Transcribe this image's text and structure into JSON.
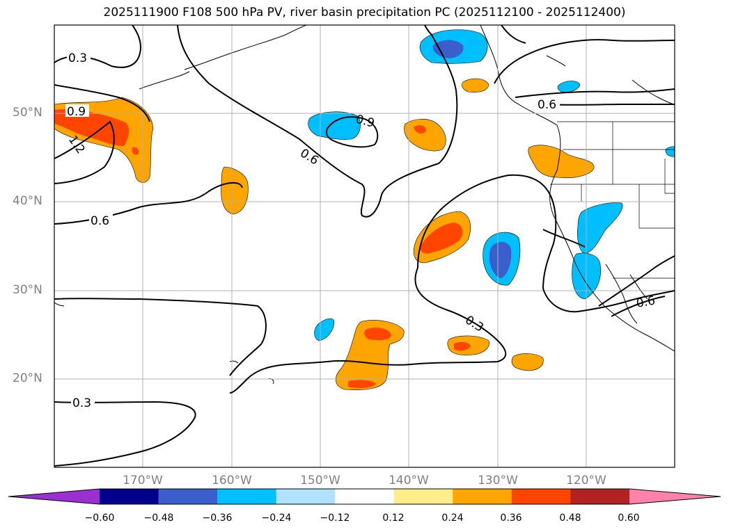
{
  "title": "2025111900 F108 500 hPa PV, river basin precipitation PC (2025112100 - 2025112400)",
  "latitude_labels": [
    "50°N",
    "40°N",
    "30°N",
    "20°N"
  ],
  "longitude_labels": [
    "170°W",
    "160°W",
    "150°W",
    "140°W",
    "130°W",
    "120°W"
  ],
  "contour_labels": [
    "0.3",
    "0.9",
    "1.2",
    "0.6",
    "0.6",
    "0.9",
    "0.6",
    "0.3",
    "0.6",
    "0.3"
  ],
  "colorbar": {
    "ticks": [
      "−0.60",
      "−0.48",
      "−0.36",
      "−0.24",
      "−0.12",
      "0.12",
      "0.24",
      "0.36",
      "0.48",
      "0.60"
    ],
    "colors": [
      "#9b30d0",
      "#00008b",
      "#3a5fcd",
      "#00bfff",
      "#b0e2ff",
      "#ffffff",
      "#ffec8b",
      "#ffa500",
      "#ff4500",
      "#b22222",
      "#ff82ab"
    ]
  }
}
